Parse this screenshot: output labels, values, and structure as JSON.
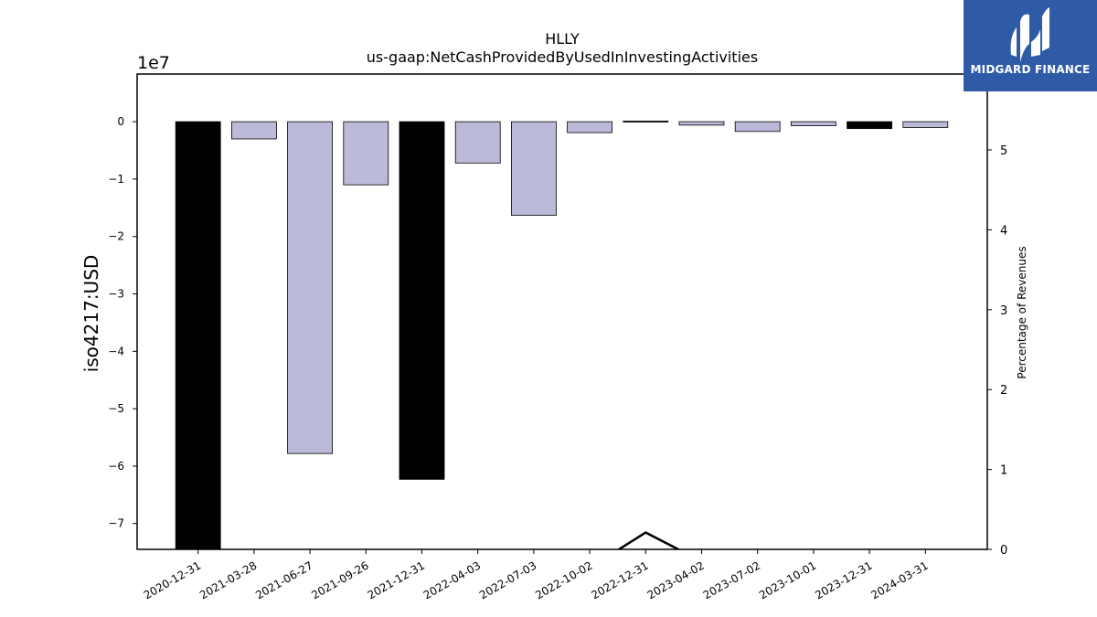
{
  "chart_data": {
    "type": "bar",
    "title_line1": "HLLY",
    "title_line2": "us-gaap:NetCashProvidedByUsedInInvestingActivities",
    "ylabel": "iso4217:USD",
    "y_offset_label": "1e7",
    "ylabel_right": "Percentage of Revenues",
    "categories": [
      "2020-12-31",
      "2021-03-28",
      "2021-06-27",
      "2021-09-26",
      "2021-12-31",
      "2022-04-03",
      "2022-07-03",
      "2022-10-02",
      "2022-12-31",
      "2023-04-02",
      "2023-07-02",
      "2023-10-01",
      "2023-12-31",
      "2024-03-31"
    ],
    "values": [
      -75000000,
      -3000000,
      -57800000,
      -11000000,
      -62300000,
      -7200000,
      -16300000,
      -1900000,
      100000,
      -600000,
      -1700000,
      -700000,
      -1200000,
      -1000000
    ],
    "annual": [
      true,
      false,
      false,
      false,
      true,
      false,
      false,
      false,
      true,
      false,
      false,
      false,
      true,
      false
    ],
    "ylim": [
      -74500000,
      8300000
    ],
    "yticks": [
      0,
      -10000000,
      -20000000,
      -30000000,
      -40000000,
      -50000000,
      -60000000,
      -70000000
    ],
    "ytick_labels": [
      "0",
      "−1",
      "−2",
      "−3",
      "−4",
      "−5",
      "−6",
      "−7"
    ],
    "right_ylim": [
      0,
      5.95
    ],
    "right_yticks": [
      0,
      1,
      2,
      3,
      4,
      5
    ],
    "right_ytick_labels": [
      "0",
      "1",
      "2",
      "3",
      "4",
      "5"
    ],
    "pct_line_y": [
      null,
      null,
      null,
      null,
      null,
      null,
      null,
      -0.23,
      0.21,
      -0.15,
      null,
      null,
      null,
      null
    ],
    "colors": {
      "annual_bar": "#000000",
      "quarter_bar": "#bcbad9",
      "edge": "#000000",
      "line": "#000000"
    }
  },
  "logo": {
    "text": "MIDGARD FINANCE",
    "bg": "#2f5aa6"
  }
}
